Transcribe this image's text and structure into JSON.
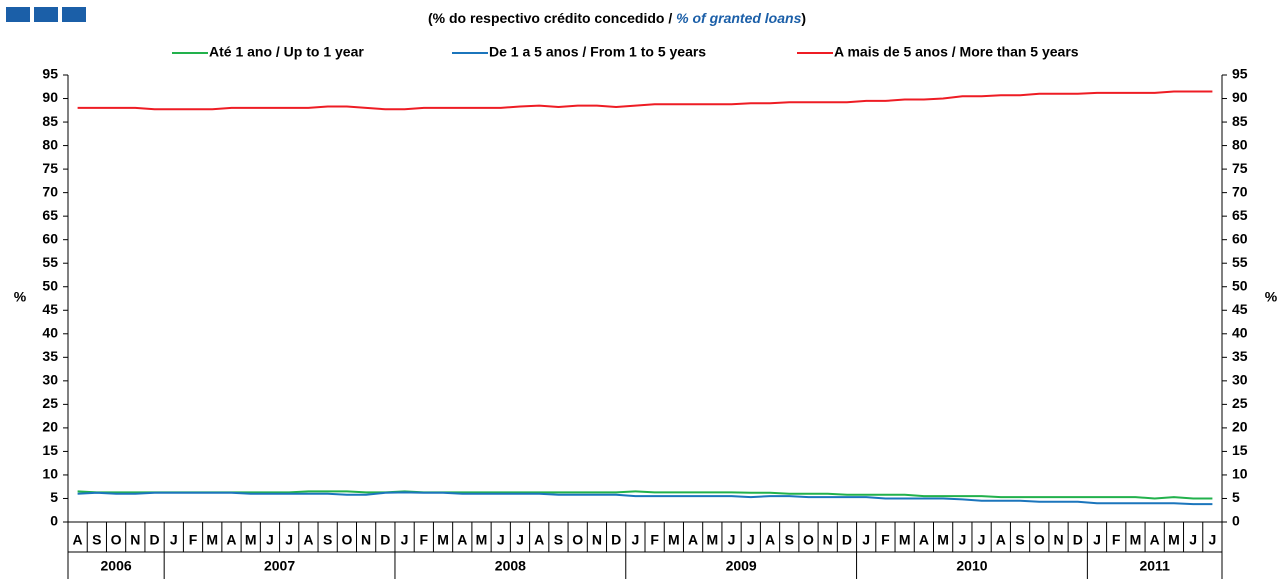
{
  "chart_data": {
    "type": "line",
    "title_parts": [
      "(% do respectivo crédito concedido / ",
      "% of granted loans",
      ")"
    ],
    "ylabel": "%",
    "y2label": "%",
    "categories": [
      "A",
      "S",
      "O",
      "N",
      "D",
      "J",
      "F",
      "M",
      "A",
      "M",
      "J",
      "J",
      "A",
      "S",
      "O",
      "N",
      "D",
      "J",
      "F",
      "M",
      "A",
      "M",
      "J",
      "J",
      "A",
      "S",
      "O",
      "N",
      "D",
      "J",
      "F",
      "M",
      "A",
      "M",
      "J",
      "J",
      "A",
      "S",
      "O",
      "N",
      "D",
      "J",
      "F",
      "M",
      "A",
      "M",
      "J",
      "J",
      "A",
      "S",
      "O",
      "N",
      "D",
      "J",
      "F",
      "M",
      "A",
      "M",
      "J",
      "J"
    ],
    "year_groups": [
      {
        "label": "2006",
        "count": 5
      },
      {
        "label": "2007",
        "count": 12
      },
      {
        "label": "2008",
        "count": 12
      },
      {
        "label": "2009",
        "count": 12
      },
      {
        "label": "2010",
        "count": 12
      },
      {
        "label": "2011",
        "count": 7
      }
    ],
    "ylim": [
      0,
      95
    ],
    "yticks": [
      0,
      5,
      10,
      15,
      20,
      25,
      30,
      35,
      40,
      45,
      50,
      55,
      60,
      65,
      70,
      75,
      80,
      85,
      90,
      95
    ],
    "y2lim": [
      0,
      95
    ],
    "y2ticks": [
      0,
      5,
      10,
      15,
      20,
      25,
      30,
      35,
      40,
      45,
      50,
      55,
      60,
      65,
      70,
      75,
      80,
      85,
      90,
      95
    ],
    "grid": false,
    "legend": "top",
    "series": [
      {
        "name": "Até 1 ano / Up to 1 year",
        "color": "#22b14c",
        "values": [
          6.5,
          6.3,
          6.3,
          6.3,
          6.3,
          6.3,
          6.3,
          6.3,
          6.3,
          6.3,
          6.3,
          6.3,
          6.5,
          6.5,
          6.5,
          6.3,
          6.3,
          6.5,
          6.3,
          6.3,
          6.3,
          6.3,
          6.3,
          6.3,
          6.3,
          6.3,
          6.3,
          6.3,
          6.3,
          6.5,
          6.3,
          6.3,
          6.3,
          6.3,
          6.3,
          6.2,
          6.2,
          6,
          6,
          6,
          5.8,
          5.8,
          5.8,
          5.8,
          5.5,
          5.5,
          5.5,
          5.5,
          5.3,
          5.3,
          5.3,
          5.3,
          5.3,
          5.3,
          5.3,
          5.3,
          5,
          5.3,
          5,
          5
        ]
      },
      {
        "name": "De 1 a 5 anos / From 1 to 5 years",
        "color": "#1b75bc",
        "values": [
          6,
          6.2,
          6,
          6,
          6.2,
          6.2,
          6.2,
          6.2,
          6.2,
          6,
          6,
          6,
          6,
          6,
          5.8,
          5.8,
          6.2,
          6.3,
          6.2,
          6.2,
          6,
          6,
          6,
          6,
          6,
          5.8,
          5.8,
          5.8,
          5.8,
          5.5,
          5.5,
          5.5,
          5.5,
          5.5,
          5.5,
          5.3,
          5.5,
          5.5,
          5.3,
          5.3,
          5.3,
          5.3,
          5,
          5,
          5,
          5,
          4.8,
          4.5,
          4.5,
          4.5,
          4.3,
          4.3,
          4.3,
          4,
          4,
          4,
          4,
          4,
          3.8,
          3.8
        ]
      },
      {
        "name": "A mais de 5 anos / More than 5 years",
        "color": "#ee1c24",
        "values": [
          88,
          88,
          88,
          88,
          87.7,
          87.7,
          87.7,
          87.7,
          88,
          88,
          88,
          88,
          88,
          88.3,
          88.3,
          88,
          87.7,
          87.7,
          88,
          88,
          88,
          88,
          88,
          88.3,
          88.5,
          88.2,
          88.5,
          88.5,
          88.2,
          88.5,
          88.8,
          88.8,
          88.8,
          88.8,
          88.8,
          89,
          89,
          89.2,
          89.2,
          89.2,
          89.2,
          89.5,
          89.5,
          89.8,
          89.8,
          90,
          90.5,
          90.5,
          90.7,
          90.7,
          91,
          91,
          91,
          91.2,
          91.2,
          91.2,
          91.2,
          91.5,
          91.5,
          91.5
        ]
      }
    ]
  }
}
